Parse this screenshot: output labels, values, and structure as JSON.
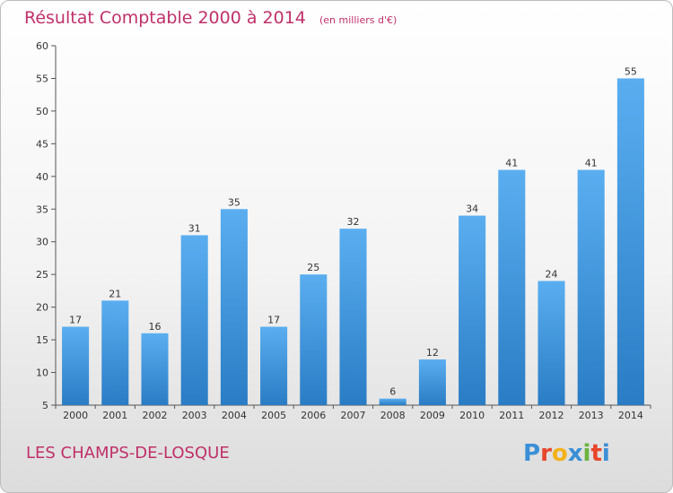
{
  "title": "Résultat Comptable 2000 à 2014",
  "unit_note": "(en milliers d'€)",
  "commune": "LES CHAMPS-DE-LOSQUE",
  "logo": {
    "text": "Proxiti",
    "colors": [
      "#3a8fd6",
      "#e8462a",
      "#f3b21b",
      "#3a8fd6",
      "#6cb33e",
      "#e8462a",
      "#3a8fd6"
    ]
  },
  "colors": {
    "accent": "#c0306a",
    "bar_top": "#5aaef0",
    "bar_bottom": "#2a7cc4"
  },
  "chart_data": {
    "type": "bar",
    "categories": [
      "2000",
      "2001",
      "2002",
      "2003",
      "2004",
      "2005",
      "2006",
      "2007",
      "2008",
      "2009",
      "2010",
      "2011",
      "2012",
      "2013",
      "2014"
    ],
    "values": [
      17,
      21,
      16,
      31,
      35,
      17,
      25,
      32,
      6,
      12,
      34,
      41,
      24,
      41,
      55
    ],
    "title": "Résultat Comptable 2000 à 2014",
    "xlabel": "",
    "ylabel": "",
    "ylim": [
      5,
      60
    ],
    "yticks": [
      5,
      10,
      15,
      20,
      25,
      30,
      35,
      40,
      45,
      50,
      55,
      60
    ],
    "grid": false,
    "legend": "none"
  }
}
